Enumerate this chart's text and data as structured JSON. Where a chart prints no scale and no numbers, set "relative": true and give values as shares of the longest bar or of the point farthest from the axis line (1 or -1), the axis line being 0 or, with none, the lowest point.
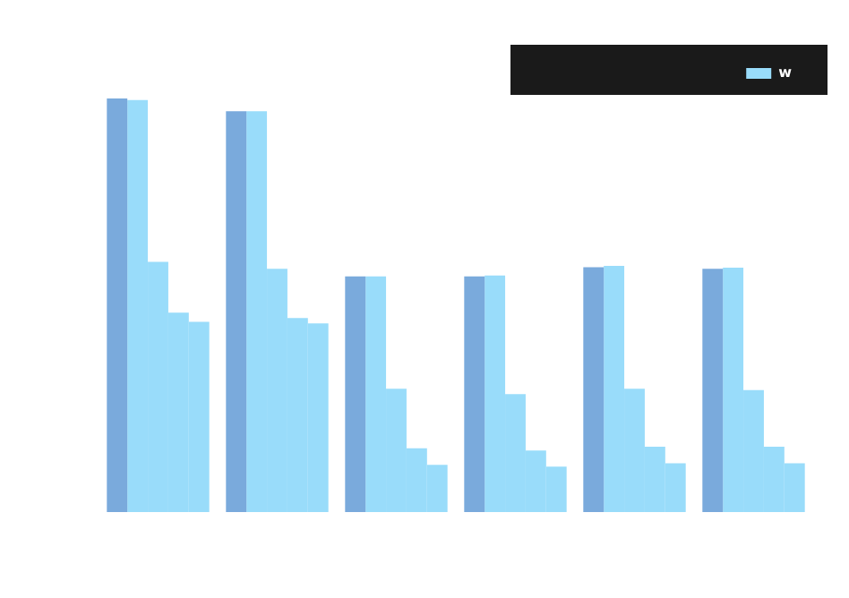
{
  "chart_data": {
    "type": "bar",
    "relative": true,
    "categories": [
      null,
      null,
      null,
      null,
      null,
      null
    ],
    "legend": "top right",
    "series": [
      {
        "color": "#7aaadc",
        "values": [
          1.0,
          0.969,
          0.57,
          0.57,
          0.592,
          0.588
        ]
      },
      {
        "name": "w",
        "color": "#99dcfa",
        "values": [
          0.996,
          0.969,
          0.57,
          0.572,
          0.595,
          0.591
        ]
      },
      {
        "color": "#99dcfa",
        "values": [
          0.605,
          0.588,
          0.298,
          0.285,
          0.298,
          0.295
        ]
      },
      {
        "color": "#99dcfa",
        "values": [
          0.482,
          0.469,
          0.154,
          0.149,
          0.158,
          0.158
        ]
      },
      {
        "color": "#99dcfa",
        "values": [
          0.46,
          0.456,
          0.114,
          0.11,
          0.118,
          0.118
        ]
      }
    ]
  }
}
